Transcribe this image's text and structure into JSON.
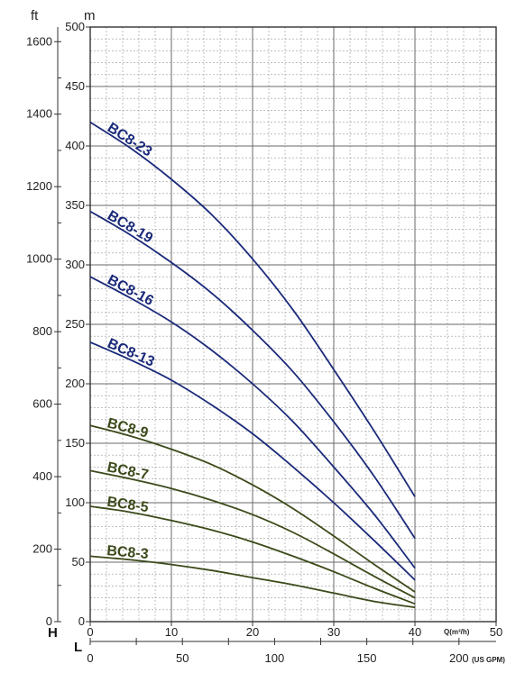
{
  "chart_data": {
    "type": "line",
    "title": "",
    "y_units": {
      "left_outer": "ft",
      "left_inner": "m"
    },
    "y_axis_letter": "H",
    "x_axis_letter": "L",
    "x_top_unit": "Q(m³/h)",
    "x_bottom_unit": "(US GPM)",
    "xlim_m3h": [
      0,
      50
    ],
    "ylim_m": [
      0,
      500
    ],
    "ylim_ft": [
      0,
      1640
    ],
    "x_ticks_m3h": [
      "0",
      "10",
      "20",
      "30",
      "40",
      "50"
    ],
    "x_ticks_gpm": [
      "0",
      "50",
      "100",
      "150",
      "200"
    ],
    "y_ticks_m": [
      "0",
      "50",
      "100",
      "150",
      "200",
      "250",
      "300",
      "350",
      "400",
      "450",
      "500"
    ],
    "y_ticks_ft": [
      "0",
      "200",
      "400",
      "600",
      "800",
      "1000",
      "1200",
      "1400",
      "1600"
    ],
    "grid": true,
    "series": [
      {
        "name": "BC8-23",
        "color": "#1b2a7a",
        "x": [
          0,
          5,
          10,
          15,
          20,
          25,
          30,
          35,
          40
        ],
        "y": [
          420,
          398,
          372,
          342,
          305,
          262,
          212,
          160,
          105
        ]
      },
      {
        "name": "BC8-19",
        "color": "#1b2a7a",
        "x": [
          0,
          5,
          10,
          15,
          20,
          25,
          30,
          35,
          40
        ],
        "y": [
          345,
          325,
          302,
          276,
          245,
          210,
          168,
          122,
          70
        ]
      },
      {
        "name": "BC8-16",
        "color": "#1b2a7a",
        "x": [
          0,
          5,
          10,
          15,
          20,
          25,
          30,
          35,
          40
        ],
        "y": [
          290,
          272,
          252,
          228,
          200,
          168,
          130,
          90,
          45
        ]
      },
      {
        "name": "BC8-13",
        "color": "#1b2a7a",
        "x": [
          0,
          5,
          10,
          15,
          20,
          25,
          30,
          35,
          40
        ],
        "y": [
          235,
          220,
          203,
          182,
          158,
          130,
          100,
          68,
          35
        ]
      },
      {
        "name": "BC8-9",
        "color": "#3c4a1a",
        "x": [
          0,
          5,
          10,
          15,
          20,
          25,
          30,
          35,
          40
        ],
        "y": [
          165,
          156,
          145,
          132,
          115,
          95,
          72,
          48,
          25
        ]
      },
      {
        "name": "BC8-7",
        "color": "#3c4a1a",
        "x": [
          0,
          5,
          10,
          15,
          20,
          25,
          30,
          35,
          40
        ],
        "y": [
          127,
          120,
          112,
          102,
          90,
          75,
          57,
          38,
          20
        ]
      },
      {
        "name": "BC8-5",
        "color": "#3c4a1a",
        "x": [
          0,
          5,
          10,
          15,
          20,
          25,
          30,
          35,
          40
        ],
        "y": [
          97,
          92,
          85,
          77,
          67,
          55,
          42,
          28,
          15
        ]
      },
      {
        "name": "BC8-3",
        "color": "#3c4a1a",
        "x": [
          0,
          5,
          10,
          15,
          20,
          25,
          30,
          35,
          40
        ],
        "y": [
          55,
          52,
          48,
          43,
          37,
          31,
          24,
          17,
          12
        ]
      }
    ]
  }
}
